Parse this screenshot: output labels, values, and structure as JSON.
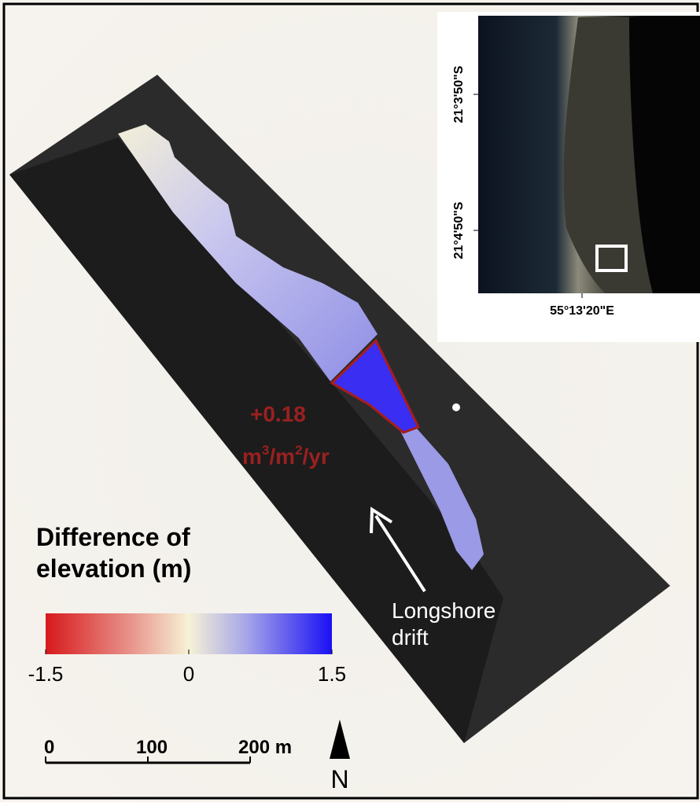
{
  "legend": {
    "title_lines": [
      "Difference of",
      "elevation (m)"
    ],
    "colorbar_ticks": [
      -1.5,
      0,
      1.5
    ]
  },
  "annotation": {
    "value": "+0.18",
    "unit": [
      "m",
      "3",
      "/m",
      "2",
      "/yr"
    ]
  },
  "drift_label": [
    "Longshore",
    "drift"
  ],
  "inset": {
    "lat_labels": [
      "21°3'50\"S",
      "21°4'50\"S"
    ],
    "lon_label": "55°13'20\"E"
  },
  "scale_bar": {
    "labels": [
      "0",
      "100",
      "200 m"
    ]
  },
  "north": "N"
}
